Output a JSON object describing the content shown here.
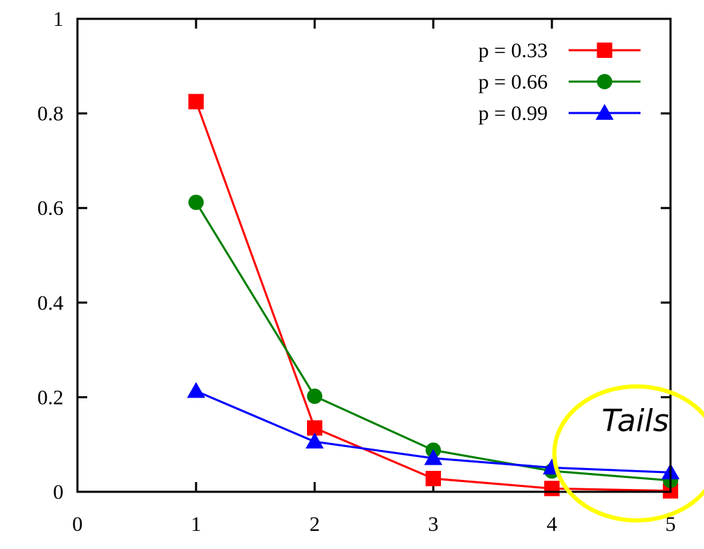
{
  "chart_data": {
    "type": "line",
    "title": "",
    "xlabel": "",
    "ylabel": "",
    "xlim": [
      0,
      5
    ],
    "ylim": [
      0,
      1
    ],
    "x_ticks": [
      "0",
      "1",
      "2",
      "3",
      "4",
      "5"
    ],
    "y_ticks": [
      "0",
      "0.2",
      "0.4",
      "0.6",
      "0.8",
      "1"
    ],
    "x": [
      1,
      2,
      3,
      4,
      5
    ],
    "grid": false,
    "legend_position": "top-right",
    "series": [
      {
        "name": "p = 0.33",
        "color": "#ff0000",
        "marker": "square",
        "values": [
          0.825,
          0.135,
          0.028,
          0.007,
          0.002
        ]
      },
      {
        "name": "p = 0.66",
        "color": "#008000",
        "marker": "circle",
        "values": [
          0.612,
          0.202,
          0.088,
          0.044,
          0.024
        ]
      },
      {
        "name": "p = 0.99",
        "color": "#0000ff",
        "marker": "triangle",
        "values": [
          0.213,
          0.106,
          0.071,
          0.051,
          0.041
        ]
      }
    ],
    "annotation": {
      "text": "Tails",
      "shape": "ellipse",
      "color": "#ffff00",
      "center": [
        4.45,
        0.062
      ]
    }
  }
}
